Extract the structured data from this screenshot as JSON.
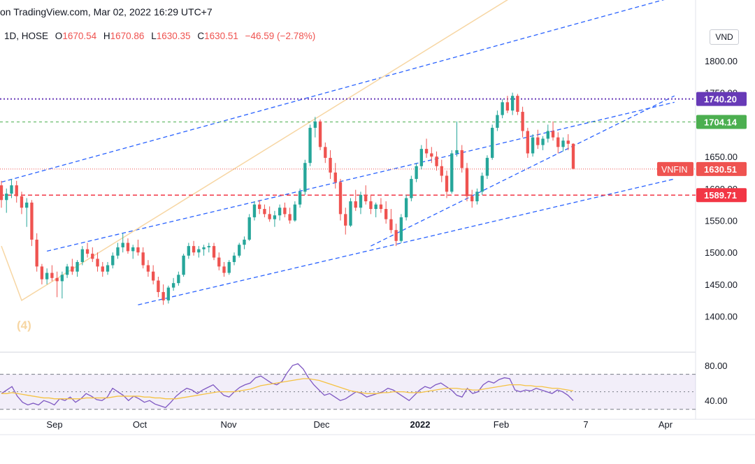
{
  "header": {
    "source_text": "on TradingView.com, Mar 02, 2022 16:29 UTC+7",
    "interval_exchange": "1D, HOSE",
    "o_label": "O",
    "o_value": "1670.54",
    "h_label": "H",
    "h_value": "1670.86",
    "l_label": "L",
    "l_value": "1630.35",
    "c_label": "C",
    "c_value": "1630.51",
    "change": "−46.59 (−2.78%)"
  },
  "currency_button": "VND",
  "wave_label": "(4)",
  "colors": {
    "up": "#26a69a",
    "down": "#ef5350",
    "trend": "#2962ff",
    "level_purple": "#673ab7",
    "level_green": "#4caf50",
    "level_red": "#f23645",
    "rsi_line": "#7e57c2",
    "rsi_ma": "#f5c242",
    "arc": "#f7d6a3"
  },
  "chart_data": [
    {
      "type": "candlestick",
      "title": "VNFIN",
      "x_tick_labels": [
        "Sep",
        "Oct",
        "Nov",
        "Dec",
        "2022",
        "Feb",
        "7",
        "Apr"
      ],
      "y_tick_labels": [
        "1400.00",
        "1450.00",
        "1500.00",
        "1550.00",
        "1600.00",
        "1650.00",
        "1750.00",
        "1800.00"
      ],
      "ylim": [
        1345,
        1860
      ],
      "price_tags": [
        {
          "label": "",
          "value": "1740.20",
          "color": "#673ab7"
        },
        {
          "label": "",
          "value": "1704.14",
          "color": "#4caf50"
        },
        {
          "label": "VNFIN",
          "value": "1630.51",
          "color": "#ef5350"
        },
        {
          "label": "",
          "value": "1589.71",
          "color": "#f23645"
        }
      ],
      "horizontal_levels": [
        1740.2,
        1704.14,
        1630.51,
        1589.71
      ],
      "ohlc": [
        [
          1605,
          1612,
          1570,
          1582
        ],
        [
          1582,
          1600,
          1562,
          1592
        ],
        [
          1592,
          1615,
          1585,
          1605
        ],
        [
          1605,
          1612,
          1578,
          1588
        ],
        [
          1588,
          1595,
          1560,
          1570
        ],
        [
          1570,
          1585,
          1540,
          1578
        ],
        [
          1578,
          1582,
          1510,
          1520
        ],
        [
          1520,
          1530,
          1470,
          1478
        ],
        [
          1478,
          1482,
          1450,
          1458
        ],
        [
          1458,
          1475,
          1450,
          1468
        ],
        [
          1468,
          1480,
          1455,
          1460
        ],
        [
          1460,
          1470,
          1430,
          1455
        ],
        [
          1455,
          1470,
          1428,
          1465
        ],
        [
          1465,
          1482,
          1460,
          1478
        ],
        [
          1478,
          1490,
          1465,
          1470
        ],
        [
          1470,
          1488,
          1462,
          1485
        ],
        [
          1485,
          1510,
          1480,
          1505
        ],
        [
          1505,
          1515,
          1492,
          1498
        ],
        [
          1498,
          1508,
          1485,
          1490
        ],
        [
          1490,
          1500,
          1470,
          1478
        ],
        [
          1478,
          1485,
          1462,
          1470
        ],
        [
          1470,
          1485,
          1465,
          1480
        ],
        [
          1480,
          1500,
          1475,
          1495
        ],
        [
          1495,
          1515,
          1490,
          1508
        ],
        [
          1508,
          1530,
          1500,
          1515
        ],
        [
          1515,
          1522,
          1498,
          1502
        ],
        [
          1502,
          1512,
          1490,
          1508
        ],
        [
          1508,
          1520,
          1495,
          1500
        ],
        [
          1500,
          1508,
          1475,
          1480
        ],
        [
          1480,
          1488,
          1462,
          1470
        ],
        [
          1470,
          1480,
          1450,
          1456
        ],
        [
          1456,
          1462,
          1430,
          1438
        ],
        [
          1438,
          1450,
          1418,
          1425
        ],
        [
          1425,
          1448,
          1420,
          1445
        ],
        [
          1445,
          1460,
          1440,
          1452
        ],
        [
          1452,
          1470,
          1448,
          1465
        ],
        [
          1465,
          1498,
          1462,
          1495
        ],
        [
          1495,
          1515,
          1490,
          1510
        ],
        [
          1510,
          1518,
          1495,
          1500
        ],
        [
          1500,
          1510,
          1492,
          1505
        ],
        [
          1505,
          1512,
          1495,
          1508
        ],
        [
          1508,
          1515,
          1500,
          1510
        ],
        [
          1510,
          1515,
          1488,
          1492
        ],
        [
          1492,
          1500,
          1472,
          1478
        ],
        [
          1478,
          1485,
          1462,
          1468
        ],
        [
          1468,
          1488,
          1465,
          1485
        ],
        [
          1485,
          1500,
          1480,
          1495
        ],
        [
          1495,
          1515,
          1492,
          1512
        ],
        [
          1512,
          1525,
          1505,
          1520
        ],
        [
          1520,
          1560,
          1518,
          1555
        ],
        [
          1555,
          1580,
          1550,
          1575
        ],
        [
          1575,
          1582,
          1560,
          1568
        ],
        [
          1568,
          1575,
          1555,
          1560
        ],
        [
          1560,
          1572,
          1548,
          1552
        ],
        [
          1552,
          1565,
          1540,
          1558
        ],
        [
          1558,
          1575,
          1550,
          1570
        ],
        [
          1570,
          1578,
          1555,
          1560
        ],
        [
          1560,
          1570,
          1545,
          1550
        ],
        [
          1550,
          1580,
          1548,
          1575
        ],
        [
          1575,
          1600,
          1570,
          1595
        ],
        [
          1595,
          1645,
          1590,
          1640
        ],
        [
          1640,
          1700,
          1635,
          1695
        ],
        [
          1695,
          1712,
          1680,
          1705
        ],
        [
          1705,
          1708,
          1660,
          1665
        ],
        [
          1665,
          1672,
          1640,
          1648
        ],
        [
          1648,
          1660,
          1615,
          1625
        ],
        [
          1625,
          1640,
          1600,
          1610
        ],
        [
          1610,
          1615,
          1550,
          1560
        ],
        [
          1560,
          1570,
          1528,
          1542
        ],
        [
          1542,
          1585,
          1540,
          1580
        ],
        [
          1580,
          1598,
          1565,
          1570
        ],
        [
          1570,
          1595,
          1560,
          1590
        ],
        [
          1590,
          1605,
          1575,
          1580
        ],
        [
          1580,
          1590,
          1560,
          1568
        ],
        [
          1568,
          1578,
          1555,
          1575
        ],
        [
          1575,
          1585,
          1562,
          1568
        ],
        [
          1568,
          1580,
          1545,
          1552
        ],
        [
          1552,
          1568,
          1530,
          1535
        ],
        [
          1535,
          1545,
          1510,
          1518
        ],
        [
          1518,
          1560,
          1515,
          1555
        ],
        [
          1555,
          1590,
          1550,
          1585
        ],
        [
          1585,
          1620,
          1580,
          1615
        ],
        [
          1615,
          1640,
          1610,
          1635
        ],
        [
          1635,
          1668,
          1630,
          1662
        ],
        [
          1662,
          1678,
          1648,
          1655
        ],
        [
          1655,
          1665,
          1640,
          1650
        ],
        [
          1650,
          1658,
          1628,
          1635
        ],
        [
          1635,
          1645,
          1610,
          1620
        ],
        [
          1620,
          1628,
          1585,
          1595
        ],
        [
          1595,
          1660,
          1592,
          1655
        ],
        [
          1655,
          1705,
          1650,
          1660
        ],
        [
          1660,
          1668,
          1625,
          1632
        ],
        [
          1632,
          1640,
          1580,
          1588
        ],
        [
          1588,
          1598,
          1570,
          1580
        ],
        [
          1580,
          1600,
          1575,
          1595
        ],
        [
          1595,
          1625,
          1590,
          1620
        ],
        [
          1620,
          1652,
          1615,
          1648
        ],
        [
          1648,
          1700,
          1645,
          1695
        ],
        [
          1695,
          1722,
          1690,
          1715
        ],
        [
          1715,
          1740,
          1710,
          1735
        ],
        [
          1735,
          1745,
          1718,
          1722
        ],
        [
          1722,
          1750,
          1715,
          1745
        ],
        [
          1745,
          1748,
          1715,
          1720
        ],
        [
          1720,
          1728,
          1680,
          1690
        ],
        [
          1690,
          1695,
          1648,
          1655
        ],
        [
          1655,
          1685,
          1650,
          1680
        ],
        [
          1680,
          1692,
          1662,
          1668
        ],
        [
          1668,
          1682,
          1660,
          1678
        ],
        [
          1678,
          1700,
          1672,
          1690
        ],
        [
          1690,
          1705,
          1675,
          1680
        ],
        [
          1680,
          1688,
          1655,
          1665
        ],
        [
          1665,
          1680,
          1658,
          1675
        ],
        [
          1675,
          1685,
          1660,
          1670
        ],
        [
          1670,
          1671,
          1630,
          1631
        ]
      ]
    },
    {
      "type": "line",
      "title": "RSI",
      "y_tick_labels": [
        "80.00",
        "40.00"
      ],
      "ylim": [
        25,
        92
      ],
      "bands": [
        70,
        50,
        30
      ],
      "series": [
        {
          "values": [
            48,
            52,
            56,
            45,
            38,
            35,
            37,
            35,
            40,
            38,
            35,
            42,
            40,
            44,
            38,
            42,
            48,
            45,
            41,
            40,
            44,
            54,
            50,
            46,
            40,
            45,
            42,
            38,
            40,
            36,
            34,
            32,
            38,
            45,
            50,
            54,
            52,
            48,
            52,
            55,
            58,
            52,
            46,
            44,
            50,
            55,
            58,
            60,
            66,
            68,
            64,
            60,
            58,
            62,
            72,
            80,
            82,
            76,
            66,
            58,
            52,
            46,
            48,
            44,
            40,
            42,
            46,
            50,
            48,
            44,
            46,
            48,
            50,
            54,
            52,
            48,
            44,
            40,
            46,
            52,
            56,
            54,
            58,
            60,
            56,
            52,
            46,
            44,
            54,
            48,
            50,
            58,
            62,
            60,
            64,
            66,
            65,
            52,
            50,
            52,
            51,
            54,
            52,
            50,
            48,
            52,
            50,
            46,
            40
          ]
        },
        {
          "values": [
            48,
            48,
            49,
            48,
            47,
            46,
            45,
            44,
            43,
            43,
            42,
            42,
            42,
            42,
            42,
            42,
            43,
            43,
            43,
            43,
            43,
            44,
            45,
            45,
            45,
            45,
            45,
            44,
            44,
            43,
            43,
            42,
            42,
            42,
            43,
            44,
            45,
            46,
            47,
            48,
            49,
            50,
            50,
            50,
            50,
            51,
            52,
            53,
            55,
            57,
            58,
            59,
            60,
            61,
            62,
            63,
            64,
            65,
            65,
            64,
            63,
            61,
            59,
            57,
            55,
            53,
            51,
            50,
            49,
            48,
            48,
            48,
            49,
            49,
            50,
            50,
            50,
            49,
            49,
            49,
            50,
            51,
            52,
            53,
            54,
            54,
            54,
            53,
            53,
            52,
            52,
            53,
            54,
            55,
            56,
            57,
            58,
            58,
            58,
            57,
            57,
            56,
            56,
            55,
            54,
            54,
            53,
            52,
            51
          ]
        }
      ]
    }
  ]
}
